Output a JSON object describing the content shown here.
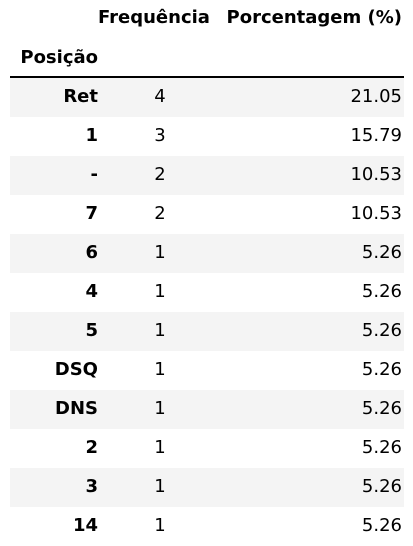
{
  "chart_data": {
    "type": "table",
    "index_name": "Posição",
    "columns": [
      "Frequência",
      "Porcentagem (%)"
    ],
    "rows": [
      {
        "pos": "Ret",
        "freq": "4",
        "pct": "21.05"
      },
      {
        "pos": "1",
        "freq": "3",
        "pct": "15.79"
      },
      {
        "pos": "-",
        "freq": "2",
        "pct": "10.53"
      },
      {
        "pos": "7",
        "freq": "2",
        "pct": "10.53"
      },
      {
        "pos": "6",
        "freq": "1",
        "pct": "5.26"
      },
      {
        "pos": "4",
        "freq": "1",
        "pct": "5.26"
      },
      {
        "pos": "5",
        "freq": "1",
        "pct": "5.26"
      },
      {
        "pos": "DSQ",
        "freq": "1",
        "pct": "5.26"
      },
      {
        "pos": "DNS",
        "freq": "1",
        "pct": "5.26"
      },
      {
        "pos": "2",
        "freq": "1",
        "pct": "5.26"
      },
      {
        "pos": "3",
        "freq": "1",
        "pct": "5.26"
      },
      {
        "pos": "14",
        "freq": "1",
        "pct": "5.26"
      }
    ]
  }
}
